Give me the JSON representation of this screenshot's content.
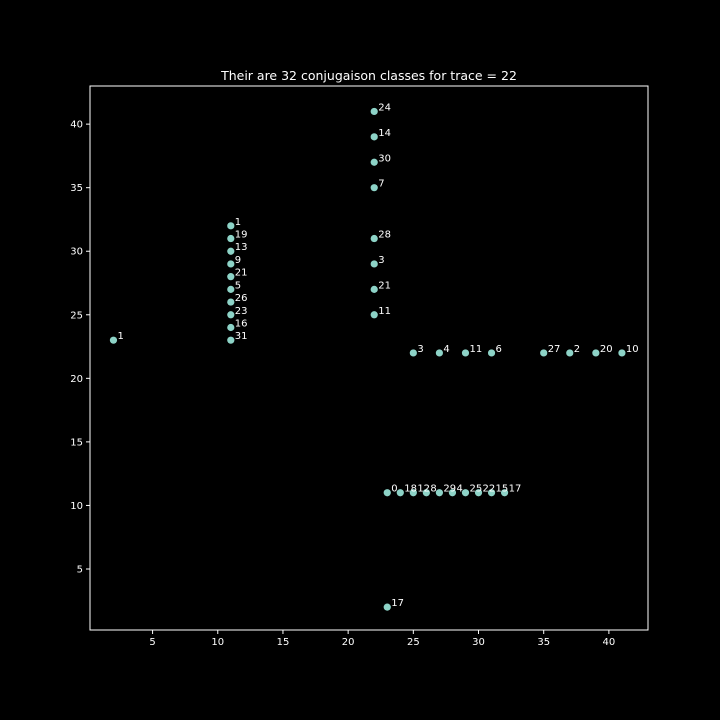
{
  "chart_data": {
    "type": "scatter",
    "title": "Their are 32 conjugaison classes for trace = 22",
    "xlabel": "",
    "ylabel": "",
    "xlim": [
      0.2,
      43
    ],
    "ylim": [
      0.2,
      43
    ],
    "xticks": [
      5,
      10,
      15,
      20,
      25,
      30,
      35,
      40
    ],
    "yticks": [
      5,
      10,
      15,
      20,
      25,
      30,
      35,
      40
    ],
    "grid": false,
    "point_color": "#8dd3c7",
    "background_color": "#000000",
    "foreground_color": "#ffffff",
    "points": [
      {
        "x": 2,
        "y": 23,
        "label": "1"
      },
      {
        "x": 11,
        "y": 32,
        "label": "1"
      },
      {
        "x": 11,
        "y": 31,
        "label": "19"
      },
      {
        "x": 11,
        "y": 30,
        "label": "13"
      },
      {
        "x": 11,
        "y": 29,
        "label": "9"
      },
      {
        "x": 11,
        "y": 28,
        "label": "21"
      },
      {
        "x": 11,
        "y": 27,
        "label": "5"
      },
      {
        "x": 11,
        "y": 26,
        "label": "26"
      },
      {
        "x": 11,
        "y": 25,
        "label": "23"
      },
      {
        "x": 11,
        "y": 24,
        "label": "16"
      },
      {
        "x": 11,
        "y": 23,
        "label": "31"
      },
      {
        "x": 22,
        "y": 41,
        "label": "24"
      },
      {
        "x": 22,
        "y": 39,
        "label": "14"
      },
      {
        "x": 22,
        "y": 37,
        "label": "30"
      },
      {
        "x": 22,
        "y": 35,
        "label": "7"
      },
      {
        "x": 22,
        "y": 31,
        "label": "28"
      },
      {
        "x": 22,
        "y": 29,
        "label": "3"
      },
      {
        "x": 22,
        "y": 27,
        "label": "21"
      },
      {
        "x": 22,
        "y": 25,
        "label": "11"
      },
      {
        "x": 25,
        "y": 22,
        "label": "3"
      },
      {
        "x": 27,
        "y": 22,
        "label": "4"
      },
      {
        "x": 29,
        "y": 22,
        "label": "11"
      },
      {
        "x": 31,
        "y": 22,
        "label": "6"
      },
      {
        "x": 35,
        "y": 22,
        "label": "27"
      },
      {
        "x": 37,
        "y": 22,
        "label": "2"
      },
      {
        "x": 39,
        "y": 22,
        "label": "20"
      },
      {
        "x": 41,
        "y": 22,
        "label": "10"
      },
      {
        "x": 23,
        "y": 11,
        "label": "0"
      },
      {
        "x": 24,
        "y": 11,
        "label": "18"
      },
      {
        "x": 25,
        "y": 11,
        "label": "12"
      },
      {
        "x": 26,
        "y": 11,
        "label": "8"
      },
      {
        "x": 27,
        "y": 11,
        "label": "29"
      },
      {
        "x": 28,
        "y": 11,
        "label": "4"
      },
      {
        "x": 29,
        "y": 11,
        "label": "25"
      },
      {
        "x": 30,
        "y": 11,
        "label": "22"
      },
      {
        "x": 31,
        "y": 11,
        "label": "15"
      },
      {
        "x": 32,
        "y": 11,
        "label": "17"
      },
      {
        "x": 23,
        "y": 2,
        "label": "17"
      }
    ]
  }
}
